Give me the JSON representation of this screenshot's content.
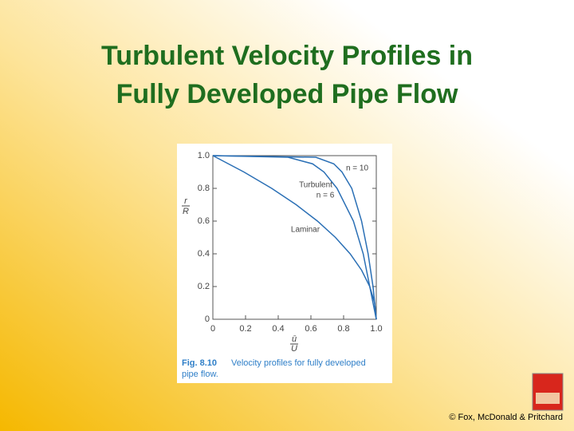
{
  "title_lines": [
    "Turbulent Velocity Profiles in",
    "Fully Developed Pipe Flow"
  ],
  "chart_data": {
    "type": "line",
    "xlabel_numerator": "ū",
    "xlabel_denominator": "U",
    "ylabel_numerator": "r",
    "ylabel_denominator": "R",
    "xlim": [
      0,
      1
    ],
    "ylim": [
      0,
      1
    ],
    "xticks": [
      0,
      0.2,
      0.4,
      0.6,
      0.8,
      {
        "value": 1,
        "label": "1.0"
      }
    ],
    "yticks": [
      0,
      0.2,
      0.4,
      0.6,
      0.8,
      {
        "value": 1,
        "label": "1.0"
      }
    ],
    "series": [
      {
        "color": "#2a6fb5",
        "x": [
          0,
          0.19,
          0.36,
          0.51,
          0.64,
          0.75,
          0.84,
          0.91,
          0.96,
          0.99,
          1
        ],
        "values": [
          1,
          0.9,
          0.8,
          0.7,
          0.6,
          0.5,
          0.4,
          0.3,
          0.2,
          0.1,
          0
        ]
      },
      {
        "color": "#2a6fb5",
        "x": [
          0,
          0.46,
          0.61,
          0.68,
          0.76,
          0.86,
          0.92,
          0.96,
          1
        ],
        "values": [
          1,
          0.99,
          0.95,
          0.9,
          0.8,
          0.6,
          0.4,
          0.2,
          0
        ]
      },
      {
        "color": "#2a6fb5",
        "x": [
          0,
          0.63,
          0.74,
          0.79,
          0.85,
          0.91,
          0.95,
          0.98,
          1
        ],
        "values": [
          1,
          0.99,
          0.95,
          0.9,
          0.8,
          0.6,
          0.4,
          0.2,
          0
        ]
      }
    ],
    "annotations": [
      "n = 10",
      "Turbulent",
      "n = 6",
      "Laminar"
    ]
  },
  "caption_label": "Fig. 8.10",
  "caption_lines": [
    "Velocity profiles for fully developed",
    "pipe flow."
  ],
  "copyright": "© Fox, McDonald & Pritchard"
}
